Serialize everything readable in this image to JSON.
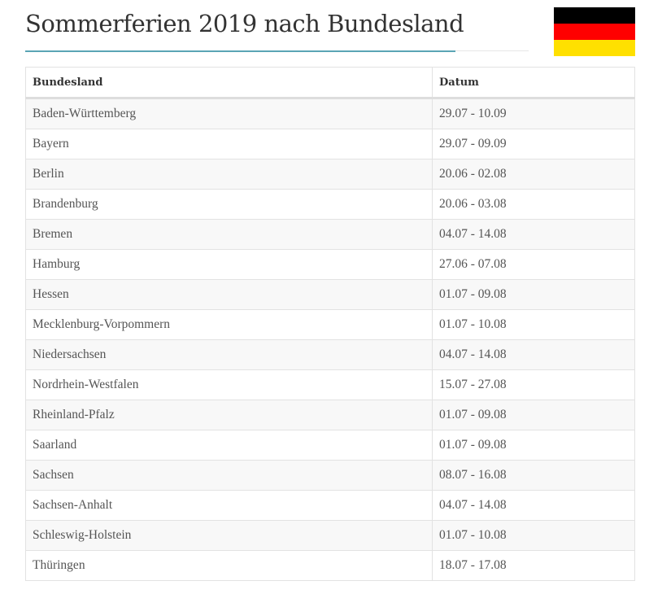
{
  "title": "Sommerferien 2019 nach Bundesland",
  "flag": {
    "colors": [
      "#000000",
      "#ff0000",
      "#ffe000"
    ],
    "icon": "germany-flag-icon"
  },
  "accent_color": "#5aa5b5",
  "table": {
    "headers": [
      "Bundesland",
      "Datum"
    ],
    "rows": [
      [
        "Baden-Württemberg",
        "29.07 - 10.09"
      ],
      [
        "Bayern",
        "29.07 - 09.09"
      ],
      [
        "Berlin",
        "20.06 - 02.08"
      ],
      [
        "Brandenburg",
        "20.06 - 03.08"
      ],
      [
        "Bremen",
        "04.07 - 14.08"
      ],
      [
        "Hamburg",
        "27.06 - 07.08"
      ],
      [
        "Hessen",
        "01.07 - 09.08"
      ],
      [
        "Mecklenburg-Vorpommern",
        "01.07 - 10.08"
      ],
      [
        "Niedersachsen",
        "04.07 - 14.08"
      ],
      [
        "Nordrhein-Westfalen",
        "15.07 - 27.08"
      ],
      [
        "Rheinland-Pfalz",
        "01.07 - 09.08"
      ],
      [
        "Saarland",
        "01.07 - 09.08"
      ],
      [
        "Sachsen",
        "08.07 - 16.08"
      ],
      [
        "Sachsen-Anhalt",
        "04.07 - 14.08"
      ],
      [
        "Schleswig-Holstein",
        "01.07 - 10.08"
      ],
      [
        "Thüringen",
        "18.07 - 17.08"
      ]
    ]
  }
}
